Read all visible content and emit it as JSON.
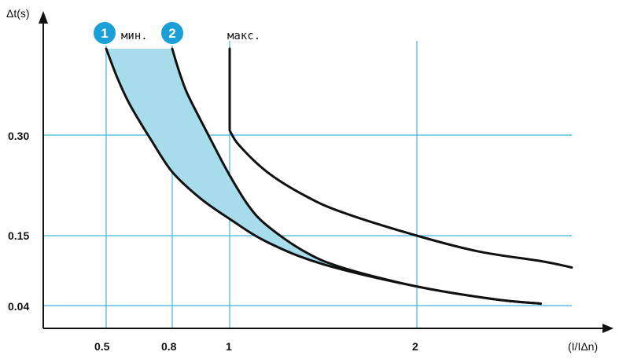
{
  "chart_data": {
    "type": "line",
    "xlabel": "(I/IΔn)",
    "ylabel": "Δt(s)",
    "x_ticks": [
      "0.5",
      "0.8",
      "1",
      "2"
    ],
    "y_ticks": [
      "0.30",
      "0.15",
      "0.04"
    ],
    "grid": true,
    "annotations": {
      "marker1": "1",
      "marker2": "2",
      "min_label": "мин.",
      "max_label": "макс."
    },
    "series": [
      {
        "id": "curve1",
        "points": [
          [
            0.5,
            0.48
          ],
          [
            0.55,
            0.42
          ],
          [
            0.6,
            0.37
          ],
          [
            0.65,
            0.33
          ],
          [
            0.7,
            0.295
          ],
          [
            0.8,
            0.245
          ],
          [
            0.9,
            0.205
          ],
          [
            1.0,
            0.175
          ],
          [
            1.2,
            0.14
          ],
          [
            1.5,
            0.105
          ],
          [
            2.0,
            0.07
          ],
          [
            2.5,
            0.05
          ],
          [
            2.8,
            0.043
          ]
        ]
      },
      {
        "id": "curve2",
        "points": [
          [
            0.8,
            0.48
          ],
          [
            0.82,
            0.44
          ],
          [
            0.85,
            0.39
          ],
          [
            0.9,
            0.33
          ],
          [
            0.95,
            0.28
          ],
          [
            1.0,
            0.24
          ],
          [
            1.1,
            0.195
          ],
          [
            1.2,
            0.165
          ],
          [
            1.4,
            0.125
          ],
          [
            1.6,
            0.1
          ],
          [
            2.0,
            0.07
          ],
          [
            2.5,
            0.05
          ],
          [
            2.8,
            0.043
          ]
        ]
      },
      {
        "id": "curve-max",
        "points": [
          [
            1.0,
            0.48
          ],
          [
            1.0,
            0.31
          ],
          [
            1.05,
            0.285
          ],
          [
            1.2,
            0.245
          ],
          [
            1.4,
            0.21
          ],
          [
            1.6,
            0.185
          ],
          [
            2.0,
            0.15
          ],
          [
            2.4,
            0.125
          ],
          [
            2.8,
            0.11
          ],
          [
            3.0,
            0.1
          ]
        ]
      }
    ],
    "colors": {
      "grid": "#3fb4dc",
      "band": "#a7dceb",
      "curve": "#111111",
      "marker": "#1a9fd6",
      "axis": "#111111"
    }
  }
}
